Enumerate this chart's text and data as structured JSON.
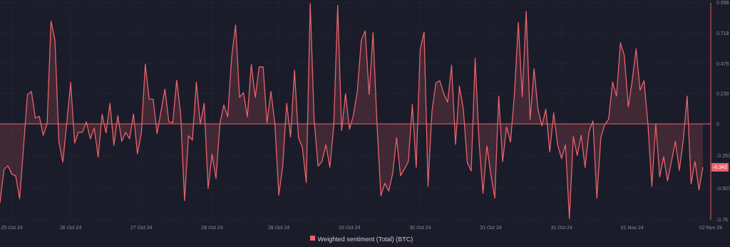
{
  "chart_data": {
    "type": "area",
    "categories": [
      null,
      null,
      null,
      "25 Oct 24",
      null,
      null,
      null,
      null,
      null,
      null,
      null,
      null,
      null,
      null,
      null,
      null,
      null,
      null,
      "26 Oct 24",
      null,
      null,
      null,
      null,
      null,
      null,
      null,
      null,
      null,
      null,
      null,
      null,
      null,
      null,
      null,
      null,
      null,
      "27 Oct 24",
      null,
      null,
      null,
      null,
      null,
      null,
      null,
      null,
      null,
      null,
      null,
      null,
      null,
      null,
      null,
      null,
      null,
      "28 Oct 24",
      null,
      null,
      null,
      null,
      null,
      null,
      null,
      null,
      null,
      null,
      null,
      null,
      null,
      null,
      null,
      null,
      "28 Oct 24",
      null,
      null,
      null,
      null,
      null,
      null,
      null,
      null,
      null,
      null,
      null,
      null,
      null,
      null,
      null,
      null,
      null,
      "29 Oct 24",
      null,
      null,
      null,
      null,
      null,
      null,
      null,
      null,
      null,
      null,
      null,
      null,
      null,
      null,
      null,
      null,
      null,
      "30 Oct 24",
      null,
      null,
      null,
      null,
      null,
      null,
      null,
      null,
      null,
      null,
      null,
      null,
      null,
      null,
      null,
      null,
      null,
      "31 Oct 24",
      null,
      null,
      null,
      null,
      null,
      null,
      null,
      null,
      null,
      null,
      null,
      null,
      null,
      null,
      null,
      null,
      null,
      "31 Oct 24",
      null,
      null,
      null,
      null,
      null,
      null,
      null,
      null,
      null,
      null,
      null,
      null,
      null,
      null,
      null,
      null,
      null,
      "01 Nov 24",
      null,
      null,
      null,
      null,
      null,
      null,
      null,
      null,
      null,
      null,
      null,
      null,
      null,
      null,
      null,
      null,
      null,
      null,
      null,
      "02 Nov 24"
    ],
    "series": [
      {
        "name": "Weighted sentiment (Total) (BTC)",
        "color": "#e8636b",
        "values": [
          -0.625,
          -0.362,
          -0.331,
          -0.396,
          -0.413,
          -0.593,
          -0.18,
          0.233,
          0.257,
          0.047,
          0.06,
          -0.09,
          0,
          0.815,
          0.661,
          -0.143,
          -0.302,
          0.004,
          0.327,
          -0.152,
          -0.066,
          -0.066,
          0.017,
          -0.118,
          -0.034,
          -0.263,
          0.075,
          -0.071,
          0.163,
          -0.169,
          0.066,
          -0.137,
          -0.066,
          -0.118,
          0.079,
          -0.237,
          -0.071,
          0.473,
          0.195,
          0.195,
          -0.077,
          0.1,
          0.276,
          0.017,
          0.009,
          0.346,
          0.079,
          -0.607,
          -0.094,
          -0.128,
          0.332,
          0,
          0.163,
          -0.51,
          -0.24,
          -0.432,
          0.004,
          0.15,
          0.056,
          0.53,
          0.783,
          0.21,
          0.248,
          0.056,
          0.47,
          0.21,
          0.451,
          0.451,
          0.009,
          0.257,
          0.004,
          -0.563,
          -0.334,
          0.163,
          -0.105,
          0.426,
          -0.109,
          -0.184,
          -0.466,
          0.952,
          0.032,
          -0.334,
          -0.297,
          -0.165,
          -0.344,
          -0.015,
          0.939,
          -0.053,
          0.239,
          -0.043,
          0.069,
          0.257,
          0.661,
          0.736,
          0.233,
          0.721,
          0.004,
          -0.569,
          -0.47,
          -0.531,
          -0.391,
          -0.109,
          -0.409,
          -0.357,
          -0.297,
          0.154,
          -0.344,
          0.586,
          0.727,
          -0.494,
          0.098,
          0.323,
          0.342,
          0.239,
          0.173,
          0.464,
          -0.162,
          0.3,
          0.116,
          -0.306,
          -0.372,
          0.52,
          -0.146,
          -0.55,
          -0.175,
          -0.4,
          -0.588,
          0.22,
          -0.297,
          -0.024,
          -0.143,
          0.229,
          0.802,
          0.214,
          0.89,
          0.032,
          0.436,
          0.116,
          -0.015,
          0.116,
          -0.222,
          0.088,
          -0.165,
          -0.274,
          -0.165,
          -0.751,
          -0.1,
          -0.25,
          -0.09,
          -0.344,
          -0.062,
          0.023,
          -0.588,
          -0.109,
          -0.006,
          0.038,
          0.332,
          0.22,
          0.642,
          0.539,
          0.135,
          0.342,
          0.595,
          0.267,
          0.342,
          0,
          -0.494,
          0,
          -0.419,
          -0.259,
          -0.451,
          -0.297,
          -0.137,
          -0.368,
          -0.128,
          0.22,
          -0.475,
          -0.297,
          -0.522,
          -0.342,
          null,
          null
        ]
      }
    ],
    "ylim": [
      -0.76,
      0.958
    ],
    "yticks": [
      -0.76,
      -0.507,
      -0.253,
      0,
      0.239,
      0.479,
      0.718,
      0.958
    ],
    "ref_lines": [
      {
        "axis": "y",
        "value": 0,
        "color": "#e8636b"
      }
    ],
    "annotations": [
      {
        "text": "-0.342",
        "y": -0.342
      }
    ],
    "grid": true,
    "legend": "bottom"
  }
}
